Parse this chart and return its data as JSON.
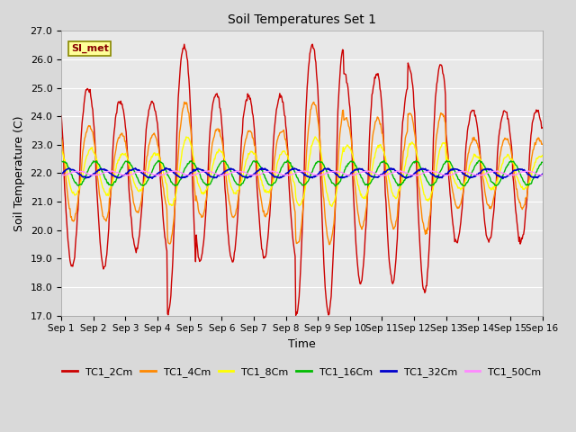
{
  "title": "Soil Temperatures Set 1",
  "xlabel": "Time",
  "ylabel": "Soil Temperature (C)",
  "ylim": [
    17.0,
    27.0
  ],
  "yticks": [
    17.0,
    18.0,
    19.0,
    20.0,
    21.0,
    22.0,
    23.0,
    24.0,
    25.0,
    26.0,
    27.0
  ],
  "xtick_labels": [
    "Sep 1",
    "Sep 2",
    "Sep 3",
    "Sep 4",
    "Sep 5",
    "Sep 6",
    "Sep 7",
    "Sep 8",
    "Sep 9",
    "Sep 10",
    "Sep 11",
    "Sep 12",
    "Sep 13",
    "Sep 14",
    "Sep 15",
    "Sep 16"
  ],
  "series_colors": [
    "#cc0000",
    "#ff8800",
    "#ffff00",
    "#00bb00",
    "#0000cc",
    "#ff88ff"
  ],
  "series_labels": [
    "TC1_2Cm",
    "TC1_4Cm",
    "TC1_8Cm",
    "TC1_16Cm",
    "TC1_32Cm",
    "TC1_50Cm"
  ],
  "annotation_text": "SI_met",
  "background_color": "#d9d9d9",
  "plot_bg_color": "#e8e8e8",
  "days": 15,
  "pts_per_day": 48,
  "base_temp": 22.0
}
